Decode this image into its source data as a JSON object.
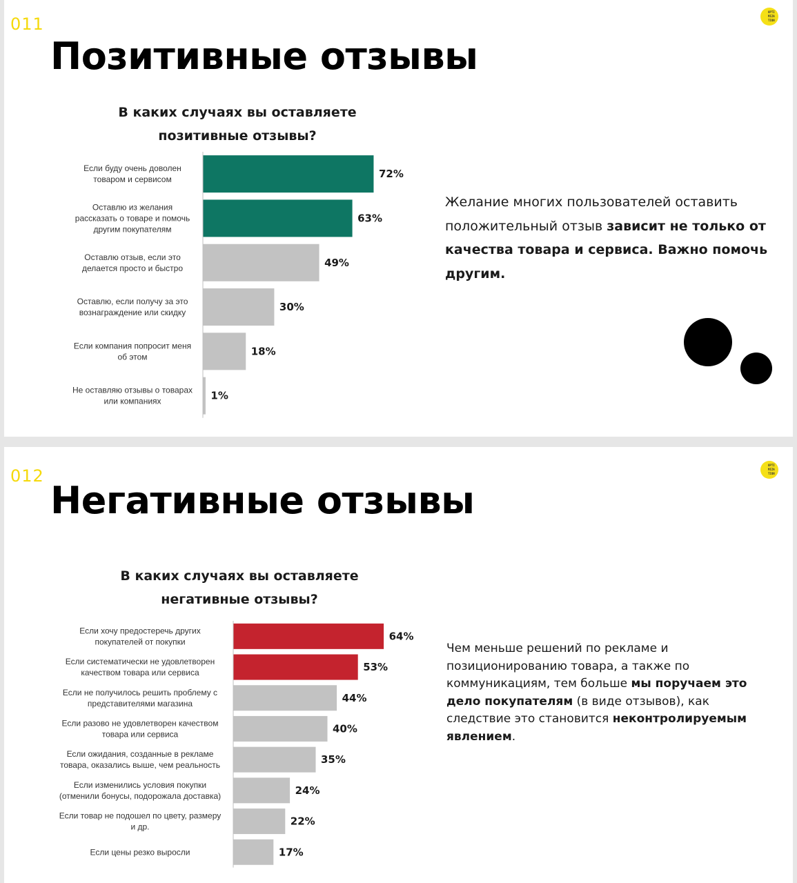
{
  "slides": [
    {
      "number": "011",
      "title": "Позитивные отзывы",
      "logo_text": "OPTI\nMIZA\nTION",
      "chart_title_line1": "В каких случаях вы оставляете",
      "chart_title_line2": "позитивные отзывы?",
      "side_text": [
        {
          "text": "Желание многих пользователей оставить положительный отзыв ",
          "bold": false
        },
        {
          "text": "зависит не только от качества товара и сервиса. Важно помочь другим.",
          "bold": true
        }
      ]
    },
    {
      "number": "012",
      "title": "Негативные отзывы",
      "logo_text": "OPTI\nMIZA\nTION",
      "chart_title_line1": "В каких случаях вы оставляете",
      "chart_title_line2": "негативные отзывы?",
      "side_text": [
        {
          "text": "Чем меньше решений по рекламе и позиционированию товара, а также по коммуникациям, тем больше ",
          "bold": false
        },
        {
          "text": "мы поручаем это дело покупателям",
          "bold": true
        },
        {
          "text": " (в виде отзывов), как следствие это становится ",
          "bold": false
        },
        {
          "text": "неконтролируемым явлением",
          "bold": true
        },
        {
          "text": ".",
          "bold": false
        }
      ]
    }
  ],
  "chart_data": [
    {
      "type": "bar",
      "orientation": "horizontal",
      "title": "В каких случаях вы оставляете позитивные отзывы?",
      "categories": [
        [
          "Если буду очень доволен",
          "товаром и сервисом"
        ],
        [
          "Оставлю из желания",
          "рассказать о товаре и помочь",
          "другим покупателям"
        ],
        [
          "Оставлю отзыв, если это",
          "делается просто и быстро"
        ],
        [
          "Оставлю, если получу за это",
          "вознаграждение или скидку"
        ],
        [
          "Если компания попросит меня",
          "об этом"
        ],
        [
          "Не оставляю отзывы о товарах",
          "или компаниях"
        ]
      ],
      "values": [
        72,
        63,
        49,
        30,
        18,
        1
      ],
      "value_labels": [
        "72%",
        "63%",
        "49%",
        "30%",
        "18%",
        "1%"
      ],
      "colors": [
        "#0e7663",
        "#0e7663",
        "#c2c2c2",
        "#c2c2c2",
        "#c2c2c2",
        "#c2c2c2"
      ],
      "xlim": [
        0,
        100
      ]
    },
    {
      "type": "bar",
      "orientation": "horizontal",
      "title": "В каких случаях вы оставляете негативные отзывы?",
      "categories": [
        [
          "Если хочу предостеречь других",
          "покупателей от покупки"
        ],
        [
          "Если систематически не удовлетворен",
          "качеством товара или сервиса"
        ],
        [
          "Если не получилось решить проблему с",
          "представителями магазина"
        ],
        [
          "Если разово не удовлетворен качеством",
          "товара или сервиса"
        ],
        [
          "Если ожидания, созданные в рекламе",
          "товара, оказались выше, чем реальность"
        ],
        [
          "Если изменились условия покупки",
          "(отменили бонусы, подорожала доставка)"
        ],
        [
          "Если товар не подошел по цвету, размеру",
          "и др."
        ],
        [
          "Если цены резко выросли"
        ]
      ],
      "values": [
        64,
        53,
        44,
        40,
        35,
        24,
        22,
        17
      ],
      "value_labels": [
        "64%",
        "53%",
        "44%",
        "40%",
        "35%",
        "24%",
        "22%",
        "17%"
      ],
      "colors": [
        "#c4232e",
        "#c4232e",
        "#c2c2c2",
        "#c2c2c2",
        "#c2c2c2",
        "#c2c2c2",
        "#c2c2c2",
        "#c2c2c2"
      ],
      "xlim": [
        0,
        100
      ]
    }
  ]
}
